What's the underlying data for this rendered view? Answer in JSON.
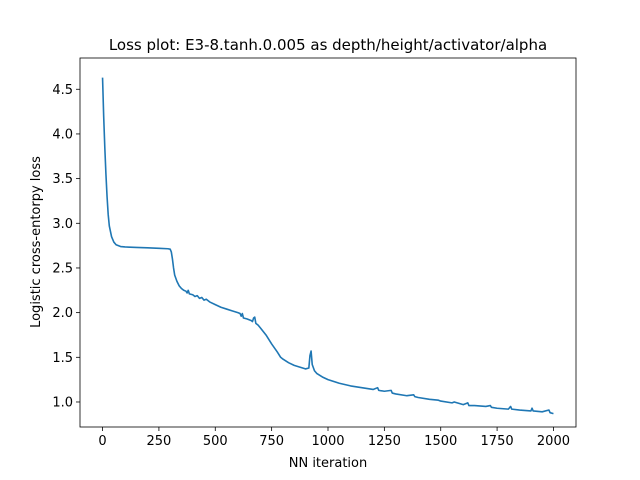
{
  "chart_data": {
    "type": "line",
    "title": "Loss plot: E3-8.tanh.0.005 as depth/height/activator/alpha",
    "xlabel": "NN iteration",
    "ylabel": "Logistic cross-entorpy loss",
    "xlim": [
      -100,
      2100
    ],
    "ylim": [
      0.72,
      4.85
    ],
    "xticks": [
      0,
      250,
      500,
      750,
      1000,
      1250,
      1500,
      1750,
      2000
    ],
    "yticks": [
      1.0,
      1.5,
      2.0,
      2.5,
      3.0,
      3.5,
      4.0,
      4.5
    ],
    "xtick_labels": [
      "0",
      "250",
      "500",
      "750",
      "1000",
      "1250",
      "1500",
      "1750",
      "2000"
    ],
    "ytick_labels": [
      "1.0",
      "1.5",
      "2.0",
      "2.5",
      "3.0",
      "3.5",
      "4.0",
      "4.5"
    ],
    "grid": false,
    "line_color": "#1f77b4",
    "series": [
      {
        "values_xy": [
          [
            0,
            4.63
          ],
          [
            5,
            4.2
          ],
          [
            10,
            3.85
          ],
          [
            15,
            3.55
          ],
          [
            20,
            3.3
          ],
          [
            25,
            3.1
          ],
          [
            30,
            2.97
          ],
          [
            40,
            2.85
          ],
          [
            50,
            2.79
          ],
          [
            60,
            2.76
          ],
          [
            80,
            2.74
          ],
          [
            100,
            2.735
          ],
          [
            150,
            2.73
          ],
          [
            200,
            2.725
          ],
          [
            250,
            2.72
          ],
          [
            290,
            2.715
          ],
          [
            300,
            2.71
          ],
          [
            305,
            2.68
          ],
          [
            310,
            2.6
          ],
          [
            315,
            2.5
          ],
          [
            320,
            2.42
          ],
          [
            330,
            2.35
          ],
          [
            340,
            2.3
          ],
          [
            350,
            2.27
          ],
          [
            360,
            2.25
          ],
          [
            370,
            2.24
          ],
          [
            375,
            2.22
          ],
          [
            380,
            2.25
          ],
          [
            385,
            2.21
          ],
          [
            400,
            2.2
          ],
          [
            410,
            2.18
          ],
          [
            420,
            2.19
          ],
          [
            430,
            2.16
          ],
          [
            440,
            2.17
          ],
          [
            450,
            2.14
          ],
          [
            460,
            2.15
          ],
          [
            475,
            2.12
          ],
          [
            500,
            2.09
          ],
          [
            525,
            2.06
          ],
          [
            550,
            2.04
          ],
          [
            575,
            2.02
          ],
          [
            600,
            2.0
          ],
          [
            610,
            1.99
          ],
          [
            615,
            1.96
          ],
          [
            620,
            1.99
          ],
          [
            625,
            1.94
          ],
          [
            640,
            1.93
          ],
          [
            660,
            1.91
          ],
          [
            665,
            1.9
          ],
          [
            670,
            1.94
          ],
          [
            675,
            1.95
          ],
          [
            680,
            1.88
          ],
          [
            690,
            1.86
          ],
          [
            700,
            1.83
          ],
          [
            725,
            1.75
          ],
          [
            750,
            1.65
          ],
          [
            775,
            1.56
          ],
          [
            790,
            1.5
          ],
          [
            800,
            1.48
          ],
          [
            825,
            1.44
          ],
          [
            850,
            1.41
          ],
          [
            875,
            1.39
          ],
          [
            900,
            1.37
          ],
          [
            915,
            1.38
          ],
          [
            920,
            1.52
          ],
          [
            925,
            1.57
          ],
          [
            930,
            1.42
          ],
          [
            940,
            1.35
          ],
          [
            950,
            1.32
          ],
          [
            975,
            1.28
          ],
          [
            1000,
            1.25
          ],
          [
            1050,
            1.21
          ],
          [
            1100,
            1.18
          ],
          [
            1150,
            1.16
          ],
          [
            1200,
            1.14
          ],
          [
            1220,
            1.16
          ],
          [
            1225,
            1.13
          ],
          [
            1250,
            1.12
          ],
          [
            1280,
            1.13
          ],
          [
            1285,
            1.1
          ],
          [
            1300,
            1.09
          ],
          [
            1350,
            1.07
          ],
          [
            1380,
            1.08
          ],
          [
            1385,
            1.06
          ],
          [
            1400,
            1.05
          ],
          [
            1450,
            1.03
          ],
          [
            1490,
            1.02
          ],
          [
            1500,
            1.01
          ],
          [
            1550,
            0.99
          ],
          [
            1560,
            1.0
          ],
          [
            1600,
            0.97
          ],
          [
            1620,
            0.99
          ],
          [
            1625,
            0.96
          ],
          [
            1650,
            0.96
          ],
          [
            1700,
            0.95
          ],
          [
            1720,
            0.96
          ],
          [
            1725,
            0.94
          ],
          [
            1750,
            0.93
          ],
          [
            1800,
            0.92
          ],
          [
            1810,
            0.95
          ],
          [
            1815,
            0.92
          ],
          [
            1850,
            0.91
          ],
          [
            1900,
            0.9
          ],
          [
            1905,
            0.93
          ],
          [
            1910,
            0.9
          ],
          [
            1950,
            0.89
          ],
          [
            1980,
            0.91
          ],
          [
            1985,
            0.88
          ],
          [
            2000,
            0.87
          ]
        ]
      }
    ]
  }
}
